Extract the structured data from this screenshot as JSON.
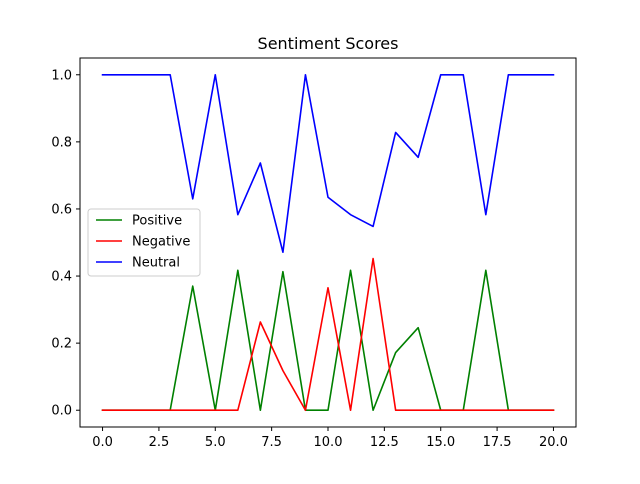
{
  "chart_data": {
    "type": "line",
    "title": "Sentiment Scores",
    "xlabel": "",
    "ylabel": "",
    "xlim": [
      -1,
      21
    ],
    "ylim": [
      -0.05,
      1.05
    ],
    "xticks": [
      0,
      2.5,
      5,
      7.5,
      10,
      12.5,
      15,
      17.5,
      20
    ],
    "xtick_labels": [
      "0.0",
      "2.5",
      "5.0",
      "7.5",
      "10.0",
      "12.5",
      "15.0",
      "17.5",
      "20.0"
    ],
    "yticks": [
      0,
      0.2,
      0.4,
      0.6,
      0.8,
      1.0
    ],
    "ytick_labels": [
      "0.0",
      "0.2",
      "0.4",
      "0.6",
      "0.8",
      "1.0"
    ],
    "grid": false,
    "legend_position": "center-left",
    "x": [
      0,
      1,
      2,
      3,
      4,
      5,
      6,
      7,
      8,
      9,
      10,
      11,
      12,
      13,
      14,
      15,
      16,
      17,
      18,
      19,
      20
    ],
    "series": [
      {
        "name": "Positive",
        "color": "#008000",
        "values": [
          0,
          0,
          0,
          0,
          0.37,
          0,
          0.417,
          0,
          0.413,
          0,
          0,
          0.417,
          0,
          0.172,
          0.246,
          0,
          0,
          0.417,
          0,
          0,
          0
        ]
      },
      {
        "name": "Negative",
        "color": "#ff0000",
        "values": [
          0,
          0,
          0,
          0,
          0,
          0,
          0,
          0.263,
          0.118,
          0,
          0.365,
          0,
          0.452,
          0,
          0,
          0,
          0,
          0,
          0,
          0,
          0
        ]
      },
      {
        "name": "Neutral",
        "color": "#0000ff",
        "values": [
          1,
          1,
          1,
          1,
          0.63,
          1,
          0.583,
          0.737,
          0.471,
          1,
          0.635,
          0.583,
          0.548,
          0.828,
          0.754,
          1,
          1,
          0.583,
          1,
          1,
          1
        ]
      }
    ]
  }
}
